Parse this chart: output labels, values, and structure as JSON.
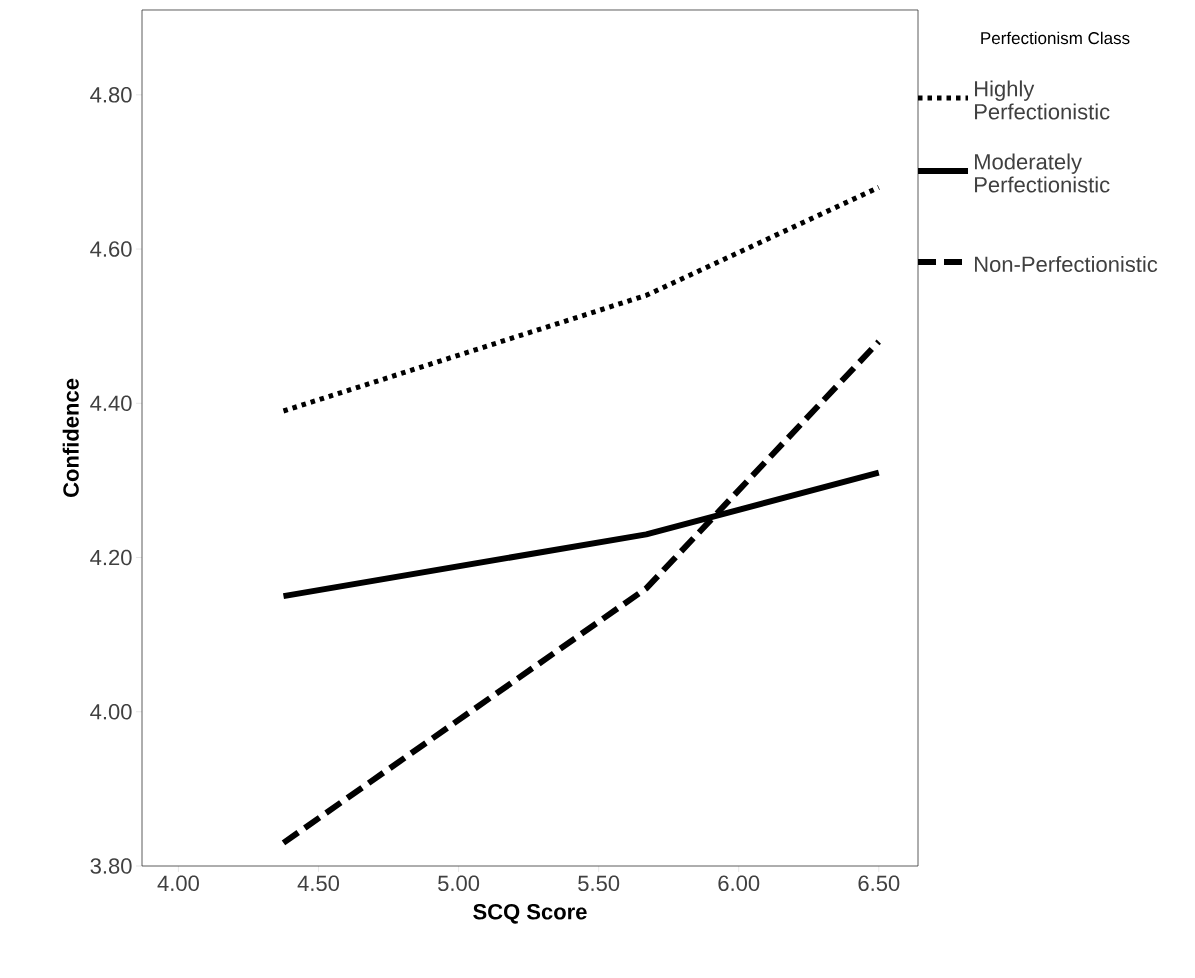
{
  "chart_data": {
    "type": "line",
    "xlabel": "SCQ Score",
    "ylabel": "Confidence",
    "legend_title": "Perfectionism Class",
    "legend": "top right",
    "x": [
      4.375,
      5.67,
      6.5
    ],
    "series": [
      {
        "name": "Highly Perfectionistic",
        "color": "#000000",
        "line_style": "dotted",
        "values": [
          4.39,
          4.54,
          4.68
        ]
      },
      {
        "name": "Moderately Perfectionistic",
        "color": "#000000",
        "line_style": "solid",
        "values": [
          4.15,
          4.23,
          4.31
        ]
      },
      {
        "name": "Non-Perfectionistic",
        "color": "#000000",
        "line_style": "dashed",
        "values": [
          3.83,
          4.16,
          4.48
        ]
      }
    ],
    "xlim": [
      3.87,
      6.64
    ],
    "ylim": [
      3.8,
      4.91
    ],
    "xticks": [
      {
        "value": 4,
        "label": "4.00"
      },
      {
        "value": 4.5,
        "label": "4.50"
      },
      {
        "value": 5,
        "label": "5.00"
      },
      {
        "value": 5.5,
        "label": "5.50"
      },
      {
        "value": 6,
        "label": "6.00"
      },
      {
        "value": 6.5,
        "label": "6.50"
      }
    ],
    "yticks": [
      {
        "value": 3.8,
        "label": "3.80"
      },
      {
        "value": 4,
        "label": "4.00"
      },
      {
        "value": 4.2,
        "label": "4.20"
      },
      {
        "value": 4.4,
        "label": "4.40"
      },
      {
        "value": 4.6,
        "label": "4.60"
      },
      {
        "value": 4.8,
        "label": "4.80"
      }
    ],
    "grid": false,
    "marker": "none"
  }
}
